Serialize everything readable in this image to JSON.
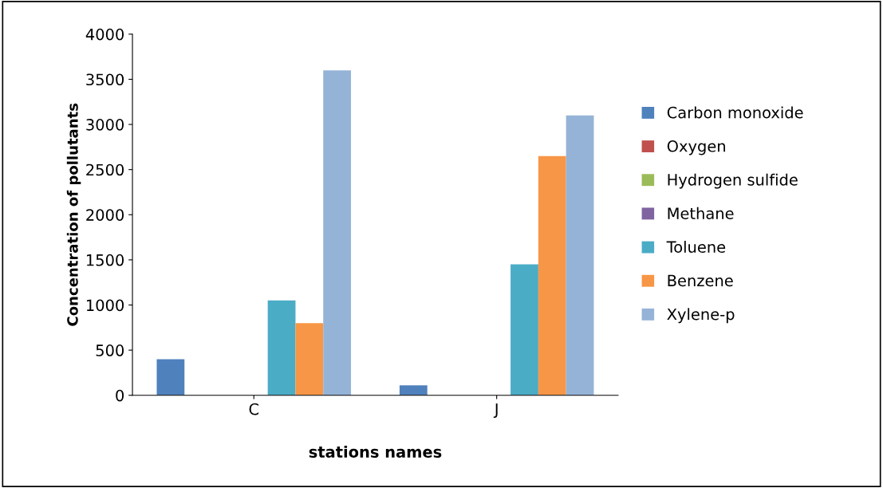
{
  "chart_data": {
    "type": "bar",
    "xlabel": "stations names",
    "ylabel": "Concentration of pollutants",
    "categories": [
      "C",
      "J"
    ],
    "series": [
      {
        "name": "Carbon monoxide",
        "color": "#4f81bd",
        "values": [
          400,
          110
        ]
      },
      {
        "name": "Oxygen",
        "color": "#c0504d",
        "values": [
          0,
          0
        ]
      },
      {
        "name": "Hydrogen sulfide",
        "color": "#9bbb59",
        "values": [
          0,
          0
        ]
      },
      {
        "name": "Methane",
        "color": "#8064a2",
        "values": [
          0,
          0
        ]
      },
      {
        "name": "Toluene",
        "color": "#4bacc6",
        "values": [
          1050,
          1450
        ]
      },
      {
        "name": "Benzene",
        "color": "#f79646",
        "values": [
          800,
          2650
        ]
      },
      {
        "name": "Xylene-p",
        "color": "#95b3d7",
        "values": [
          3600,
          3100
        ]
      }
    ],
    "ylim": [
      0,
      4000
    ],
    "yticks": [
      0,
      500,
      1000,
      1500,
      2000,
      2500,
      3000,
      3500,
      4000
    ],
    "grid": false,
    "legend": "right"
  }
}
